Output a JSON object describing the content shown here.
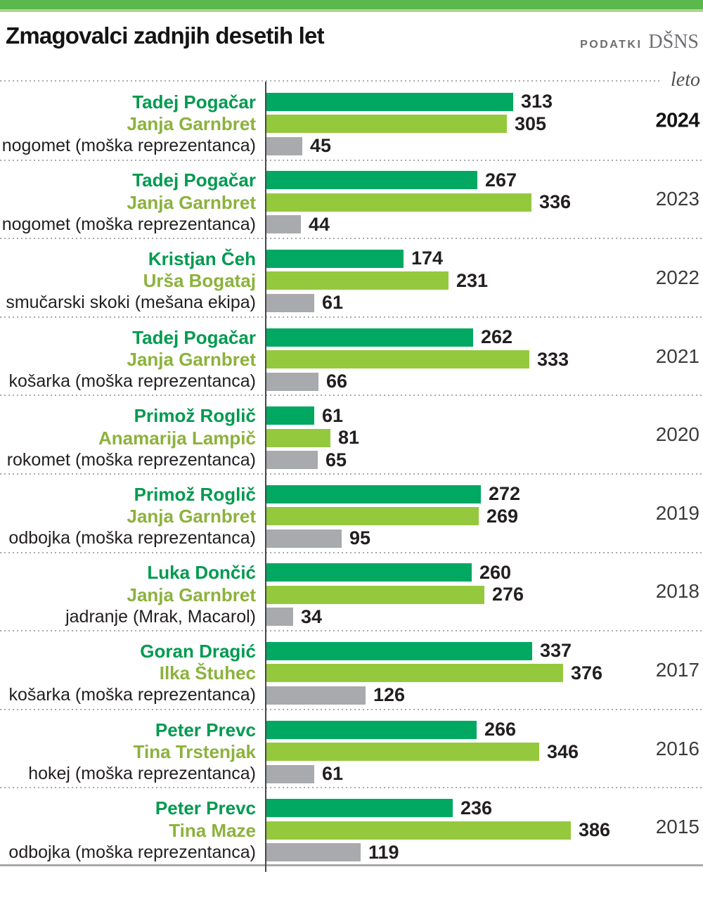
{
  "header": {
    "title": "Zmagovalci zadnjih desetih let",
    "source_label": "PODATKI",
    "source_name": "DŠNS"
  },
  "chart_data": {
    "type": "bar",
    "orientation": "horizontal",
    "axis_note": "leto",
    "xlim": [
      0,
      400
    ],
    "grid": "dotted row separators",
    "legend_position": "none",
    "colors": {
      "male": "#00a862",
      "female": "#95c93d",
      "team": "#a8aaad",
      "male_text": "#009a50",
      "female_text": "#8cb23c",
      "team_text": "#231f20"
    },
    "groups": [
      {
        "year": "2024",
        "bold": true,
        "rows": [
          {
            "label": "Tadej Pogačar",
            "value": 313,
            "type": "male"
          },
          {
            "label": "Janja Garnbret",
            "value": 305,
            "type": "female"
          },
          {
            "label": "nogomet (moška reprezentanca)",
            "value": 45,
            "type": "team"
          }
        ]
      },
      {
        "year": "2023",
        "bold": false,
        "rows": [
          {
            "label": "Tadej Pogačar",
            "value": 267,
            "type": "male"
          },
          {
            "label": "Janja Garnbret",
            "value": 336,
            "type": "female"
          },
          {
            "label": "nogomet (moška reprezentanca)",
            "value": 44,
            "type": "team"
          }
        ]
      },
      {
        "year": "2022",
        "bold": false,
        "rows": [
          {
            "label": "Kristjan Čeh",
            "value": 174,
            "type": "male"
          },
          {
            "label": "Urša Bogataj",
            "value": 231,
            "type": "female"
          },
          {
            "label": "smučarski skoki (mešana ekipa)",
            "value": 61,
            "type": "team"
          }
        ]
      },
      {
        "year": "2021",
        "bold": false,
        "rows": [
          {
            "label": "Tadej Pogačar",
            "value": 262,
            "type": "male"
          },
          {
            "label": "Janja Garnbret",
            "value": 333,
            "type": "female"
          },
          {
            "label": "košarka (moška reprezentanca)",
            "value": 66,
            "type": "team"
          }
        ]
      },
      {
        "year": "2020",
        "bold": false,
        "rows": [
          {
            "label": "Primož Roglič",
            "value": 61,
            "type": "male"
          },
          {
            "label": "Anamarija Lampič",
            "value": 81,
            "type": "female"
          },
          {
            "label": "rokomet (moška reprezentanca)",
            "value": 65,
            "type": "team"
          }
        ]
      },
      {
        "year": "2019",
        "bold": false,
        "rows": [
          {
            "label": "Primož Roglič",
            "value": 272,
            "type": "male"
          },
          {
            "label": "Janja Garnbret",
            "value": 269,
            "type": "female"
          },
          {
            "label": "odbojka (moška reprezentanca)",
            "value": 95,
            "type": "team"
          }
        ]
      },
      {
        "year": "2018",
        "bold": false,
        "rows": [
          {
            "label": "Luka Dončić",
            "value": 260,
            "type": "male"
          },
          {
            "label": "Janja Garnbret",
            "value": 276,
            "type": "female"
          },
          {
            "label": "jadranje (Mrak, Macarol)",
            "value": 34,
            "type": "team"
          }
        ]
      },
      {
        "year": "2017",
        "bold": false,
        "rows": [
          {
            "label": "Goran Dragić",
            "value": 337,
            "type": "male"
          },
          {
            "label": "Ilka Štuhec",
            "value": 376,
            "type": "female"
          },
          {
            "label": "košarka (moška reprezentanca)",
            "value": 126,
            "type": "team"
          }
        ]
      },
      {
        "year": "2016",
        "bold": false,
        "rows": [
          {
            "label": "Peter Prevc",
            "value": 266,
            "type": "male"
          },
          {
            "label": "Tina Trstenjak",
            "value": 346,
            "type": "female"
          },
          {
            "label": "hokej (moška reprezentanca)",
            "value": 61,
            "type": "team"
          }
        ]
      },
      {
        "year": "2015",
        "bold": false,
        "rows": [
          {
            "label": "Peter Prevc",
            "value": 236,
            "type": "male"
          },
          {
            "label": "Tina Maze",
            "value": 386,
            "type": "female"
          },
          {
            "label": "odbojka (moška reprezentanca)",
            "value": 119,
            "type": "team"
          }
        ]
      }
    ]
  }
}
